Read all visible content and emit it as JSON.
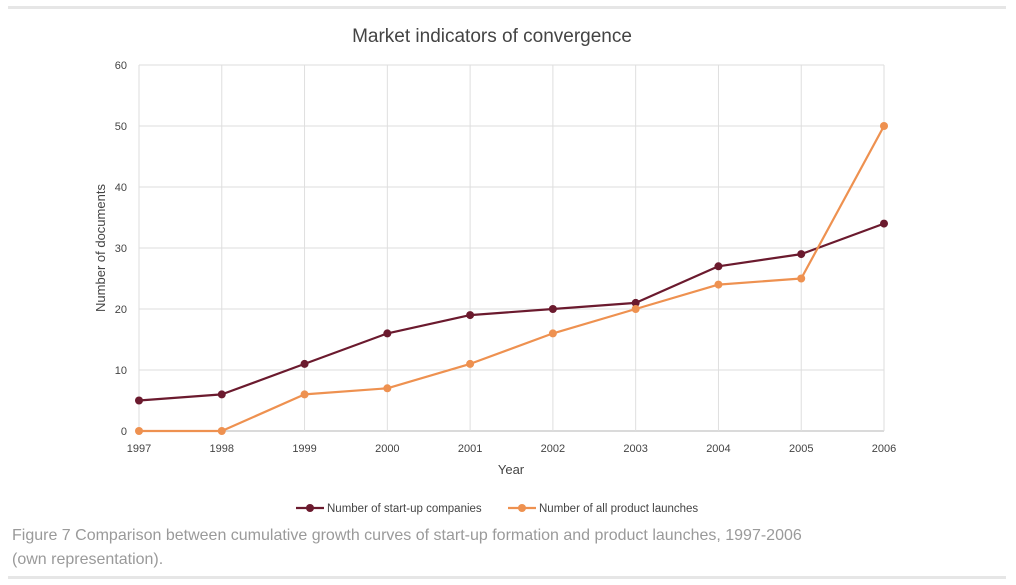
{
  "chart_data": {
    "type": "line",
    "title": "Market indicators of convergence",
    "xlabel": "Year",
    "ylabel": "Number of documents",
    "categories": [
      "1997",
      "1998",
      "1999",
      "2000",
      "2001",
      "2002",
      "2003",
      "2004",
      "2005",
      "2006"
    ],
    "ylim": [
      0,
      60
    ],
    "yticks": [
      0,
      10,
      20,
      30,
      40,
      50,
      60
    ],
    "grid": true,
    "legend_position": "bottom",
    "series": [
      {
        "name": "Number of start-up companies",
        "color": "#6b1a2e",
        "values": [
          5,
          6,
          11,
          16,
          19,
          20,
          21,
          27,
          29,
          34
        ]
      },
      {
        "name": "Number of all product launches",
        "color": "#ee9150",
        "values": [
          0,
          0,
          6,
          7,
          11,
          16,
          20,
          24,
          25,
          50
        ]
      }
    ]
  },
  "caption": {
    "line1": "Figure 7 Comparison between cumulative growth curves of start-up formation and product launches, 1997-2006",
    "line2": "(own representation)."
  }
}
